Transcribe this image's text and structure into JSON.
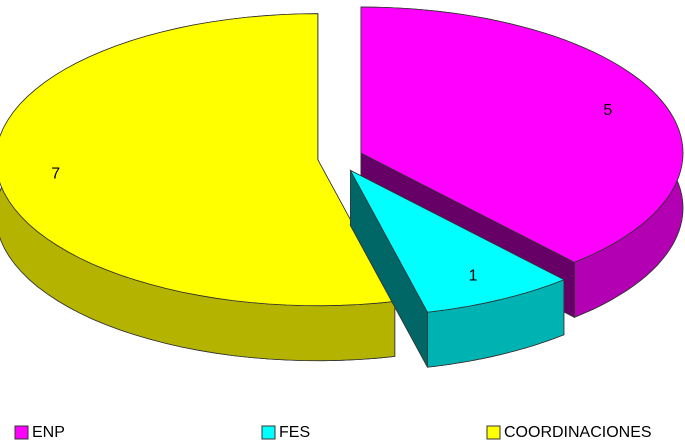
{
  "chart_data": {
    "type": "pie3d",
    "categories": [
      "ENP",
      "FES",
      "COORDINACIONES"
    ],
    "values": [
      5,
      1,
      7
    ],
    "colors": [
      "#ff00ff",
      "#00ffff",
      "#ffff00"
    ],
    "legend": "bottom"
  }
}
